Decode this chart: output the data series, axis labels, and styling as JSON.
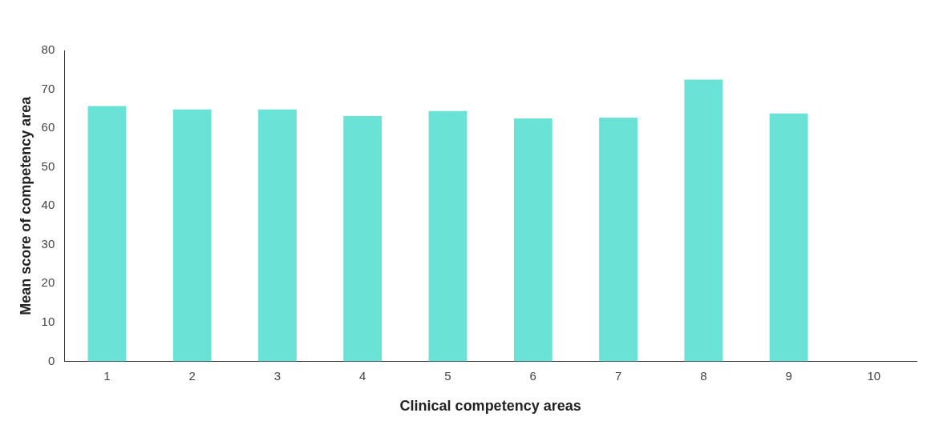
{
  "chart_data": {
    "type": "bar",
    "xlabel": "Clinical competency areas",
    "ylabel": "Mean score of competency area",
    "categories": [
      "1",
      "2",
      "3",
      "4",
      "5",
      "6",
      "7",
      "8",
      "9",
      "10"
    ],
    "values": [
      65.7,
      64.8,
      64.8,
      63.1,
      64.4,
      62.5,
      62.7,
      72.5,
      63.8,
      null
    ],
    "color": "#6ae3d6",
    "ylim": [
      0,
      80
    ],
    "yticks": [
      0,
      10,
      20,
      30,
      40,
      50,
      60,
      70,
      80
    ],
    "grid": false,
    "legend": false
  }
}
